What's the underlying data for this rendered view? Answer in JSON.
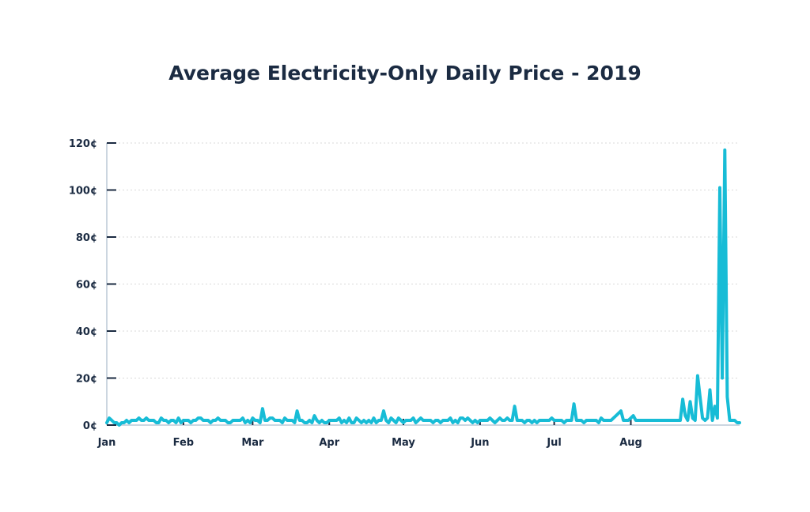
{
  "chart_data": {
    "type": "line",
    "title": "Average Electricity-Only Daily Price - 2019",
    "xlabel": "",
    "ylabel": "",
    "y_ticks": [
      "0¢",
      "20¢",
      "40¢",
      "60¢",
      "80¢",
      "100¢",
      "120¢"
    ],
    "x_ticks": [
      "Jan",
      "Feb",
      "Mar",
      "Apr",
      "May",
      "Jun",
      "Jul",
      "Aug"
    ],
    "ylim": [
      0,
      120
    ],
    "y_unit": "¢",
    "grid": true,
    "line_color": "#17bcd6",
    "series": [
      {
        "values": [
          1,
          3,
          2,
          1,
          1,
          0,
          1,
          1,
          2,
          1,
          2,
          2,
          2,
          3,
          2,
          2,
          3,
          2,
          2,
          2,
          1,
          1,
          3,
          2,
          2,
          1,
          2,
          2,
          1,
          3,
          1,
          2,
          2,
          2,
          1,
          2,
          2,
          3,
          3,
          2,
          2,
          2,
          1,
          2,
          2,
          3,
          2,
          2,
          2,
          1,
          1,
          2,
          2,
          2,
          2,
          3,
          1,
          2,
          1,
          3,
          2,
          2,
          1,
          7,
          2,
          2,
          3,
          3,
          2,
          2,
          2,
          1,
          3,
          2,
          2,
          2,
          1,
          6,
          2,
          2,
          1,
          1,
          2,
          1,
          4,
          2,
          1,
          2,
          1,
          1,
          2,
          2,
          2,
          2,
          3,
          1,
          2,
          1,
          3,
          1,
          1,
          3,
          2,
          1,
          2,
          1,
          2,
          1,
          3,
          1,
          2,
          2,
          6,
          2,
          1,
          3,
          2,
          1,
          3,
          2,
          1,
          2,
          2,
          2,
          3,
          1,
          2,
          3,
          2,
          2,
          2,
          2,
          1,
          2,
          2,
          1,
          2,
          2,
          2,
          3,
          1,
          2,
          1,
          3,
          3,
          2,
          3,
          2,
          1,
          2,
          1,
          2,
          2,
          2,
          2,
          3,
          2,
          1,
          2,
          3,
          2,
          2,
          3,
          2,
          2,
          8,
          2,
          2,
          2,
          1,
          2,
          2,
          1,
          2,
          1,
          2,
          2,
          2,
          2,
          2,
          3,
          2,
          2,
          2,
          2,
          1,
          2,
          2,
          2,
          9,
          2,
          2,
          2,
          1,
          2,
          2,
          2,
          2,
          2,
          1,
          3,
          2,
          2,
          2,
          2,
          3,
          4,
          5,
          6,
          2,
          2,
          2,
          3,
          4,
          2,
          2,
          2,
          2,
          2,
          2,
          2,
          2,
          2,
          2,
          2,
          2,
          2,
          2,
          2,
          2,
          2,
          2,
          2,
          11,
          4,
          2,
          10,
          3,
          2,
          21,
          12,
          3,
          2,
          3,
          15,
          2,
          8,
          3,
          101,
          20,
          117,
          12,
          2,
          2,
          2,
          1,
          1
        ]
      }
    ]
  }
}
